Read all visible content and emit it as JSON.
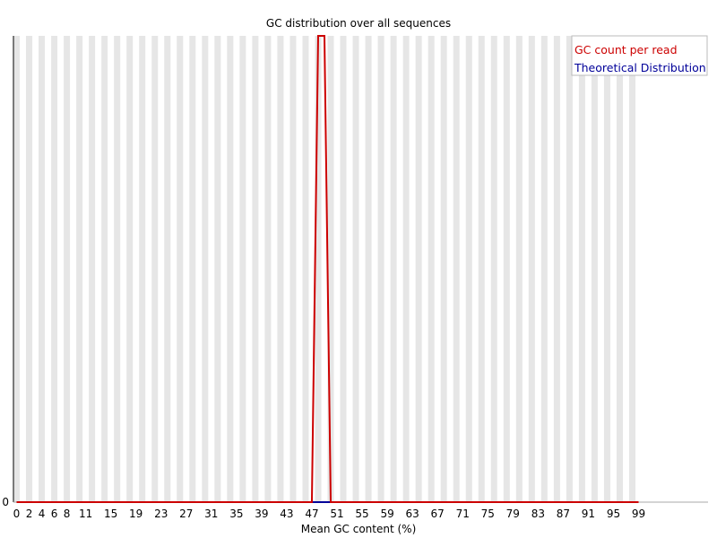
{
  "chart_data": {
    "type": "line",
    "title": "GC distribution over all sequences",
    "xlabel": "Mean GC content (%)",
    "ylabel": "",
    "x_tick_labels": [
      "0",
      "2",
      "4",
      "6",
      "8",
      "11",
      "15",
      "19",
      "23",
      "27",
      "31",
      "35",
      "39",
      "43",
      "47",
      "51",
      "55",
      "59",
      "63",
      "67",
      "71",
      "75",
      "79",
      "83",
      "87",
      "91",
      "95",
      "99"
    ],
    "y_tick_labels": [
      "0"
    ],
    "ylim": [
      0,
      1
    ],
    "grid": "alternating vertical bands",
    "legend_placement": "top-right",
    "series": [
      {
        "name": "GC count per read",
        "color": "#cc0000",
        "x": [
          0,
          47,
          48,
          49,
          50,
          51,
          99
        ],
        "y": [
          0,
          0,
          1,
          1,
          0,
          0,
          0
        ]
      },
      {
        "name": "Theoretical Distribution",
        "color": "#000099",
        "x": [
          0,
          99
        ],
        "y": [
          0,
          0
        ]
      }
    ]
  }
}
